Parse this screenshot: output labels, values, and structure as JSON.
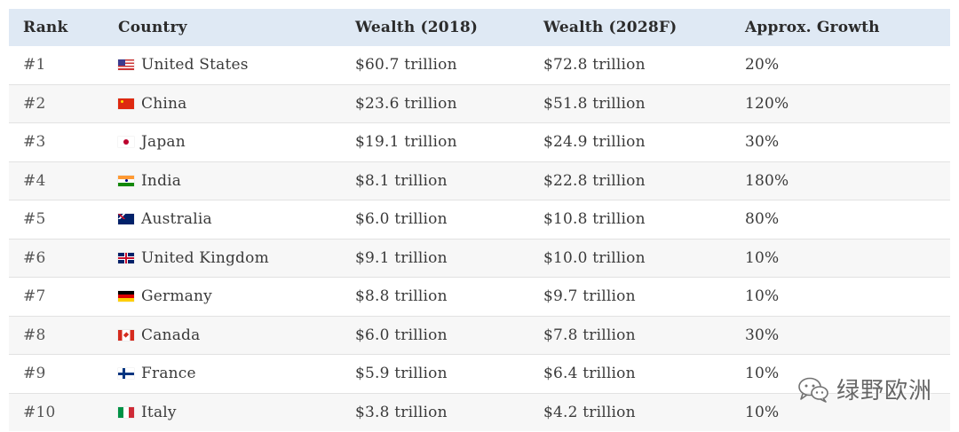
{
  "table": {
    "headers": [
      "Rank",
      "Country",
      "Wealth (2018)",
      "Wealth (2028F)",
      "Approx. Growth"
    ],
    "rows": [
      {
        "rank": "#1",
        "flag": "us-flag-icon",
        "country": "United States",
        "w2018": "$60.7 trillion",
        "w2028": "$72.8 trillion",
        "growth": "20%"
      },
      {
        "rank": "#2",
        "flag": "china-flag-icon",
        "country": "China",
        "w2018": "$23.6 trillion",
        "w2028": "$51.8 trillion",
        "growth": "120%"
      },
      {
        "rank": "#3",
        "flag": "japan-flag-icon",
        "country": "Japan",
        "w2018": "$19.1 trillion",
        "w2028": "$24.9 trillion",
        "growth": "30%"
      },
      {
        "rank": "#4",
        "flag": "india-flag-icon",
        "country": "India",
        "w2018": "$8.1 trillion",
        "w2028": "$22.8 trillion",
        "growth": "180%"
      },
      {
        "rank": "#5",
        "flag": "australia-flag-icon",
        "country": "Australia",
        "w2018": "$6.0 trillion",
        "w2028": "$10.8 trillion",
        "growth": "80%"
      },
      {
        "rank": "#6",
        "flag": "uk-flag-icon",
        "country": "United Kingdom",
        "w2018": "$9.1 trillion",
        "w2028": "$10.0 trillion",
        "growth": "10%"
      },
      {
        "rank": "#7",
        "flag": "germany-flag-icon",
        "country": "Germany",
        "w2018": "$8.8 trillion",
        "w2028": "$9.7 trillion",
        "growth": "10%"
      },
      {
        "rank": "#8",
        "flag": "canada-flag-icon",
        "country": "Canada",
        "w2018": "$6.0 trillion",
        "w2028": "$7.8 trillion",
        "growth": "30%"
      },
      {
        "rank": "#9",
        "flag": "finland-flag-icon",
        "country": "France",
        "w2018": "$5.9 trillion",
        "w2028": "$6.4 trillion",
        "growth": "10%"
      },
      {
        "rank": "#10",
        "flag": "italy-flag-icon",
        "country": "Italy",
        "w2018": "$3.8 trillion",
        "w2028": "$4.2 trillion",
        "growth": "10%"
      }
    ]
  },
  "watermark": {
    "text": "绿野欧洲",
    "icon": "wechat-icon"
  }
}
